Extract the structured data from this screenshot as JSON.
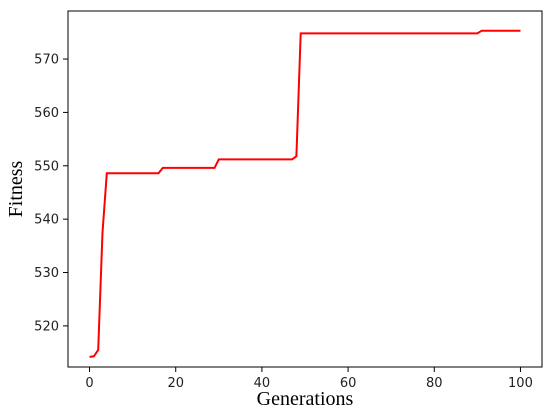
{
  "chart_data": {
    "type": "line",
    "title": "",
    "xlabel": "Generations",
    "ylabel": "Fitness",
    "xlim": [
      -5,
      105
    ],
    "ylim": [
      512.3,
      579
    ],
    "xticks": [
      0,
      20,
      40,
      60,
      80,
      100
    ],
    "yticks": [
      520,
      530,
      540,
      550,
      560,
      570
    ],
    "grid": false,
    "line_color": "#ff0000",
    "series": [
      {
        "x": [
          0,
          1,
          2,
          3,
          4,
          16,
          17,
          29,
          30,
          47,
          48,
          49,
          90,
          91,
          100
        ],
        "y": [
          514.2,
          514.3,
          515.5,
          537.5,
          548.6,
          548.6,
          549.6,
          549.6,
          551.2,
          551.2,
          551.8,
          574.8,
          574.8,
          575.3,
          575.3
        ]
      }
    ]
  }
}
